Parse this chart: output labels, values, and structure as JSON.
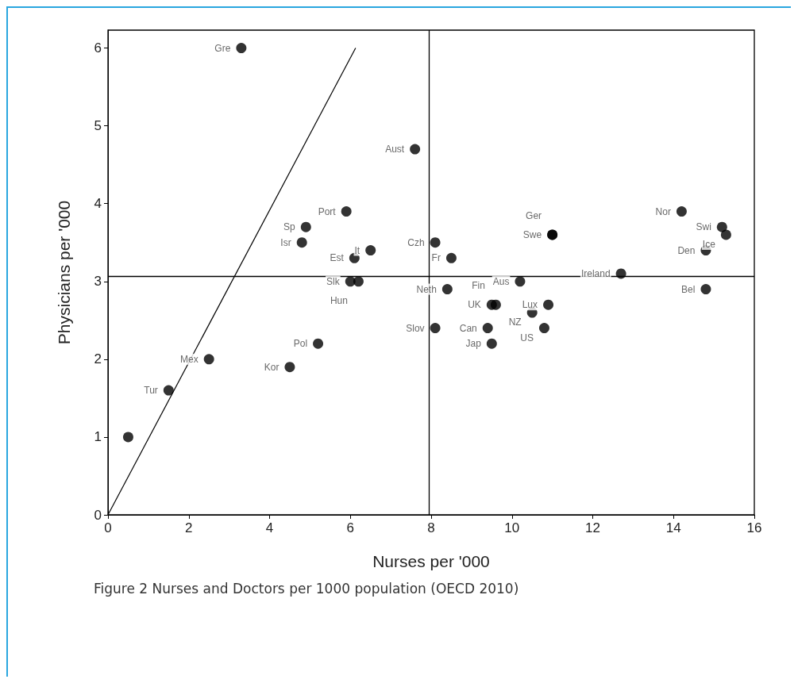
{
  "chart_data": {
    "type": "scatter",
    "xlabel": "Nurses per '000",
    "ylabel": "Physicians per '000",
    "annotations": [
      "Figure 2 Nurses and Doctors per 1000 population (OECD 2010)"
    ],
    "xlim": [
      0,
      16
    ],
    "xticks": [
      0,
      2,
      4,
      6,
      8,
      10,
      12,
      14,
      16
    ],
    "ylim": [
      0,
      6.23
    ],
    "yticks": [
      0,
      1,
      2,
      3,
      4,
      5,
      6
    ],
    "marker": "circle",
    "ref_lines": [
      {
        "axis": "x",
        "value": 7.95,
        "color": "#000000"
      },
      {
        "axis": "y",
        "value": 3.07,
        "color": "#000000"
      }
    ],
    "series": [
      {
        "color": "#000000",
        "x": [
          3.3,
          7.6,
          14.2,
          15.2,
          15.3,
          14.8,
          12.7,
          14.8,
          11.0,
          11.0,
          10.2,
          5.9,
          4.9,
          4.8,
          8.1,
          6.1,
          6.5,
          8.5,
          6.0,
          6.2,
          8.4,
          9.5,
          9.6,
          10.9,
          10.5,
          8.1,
          9.4,
          10.8,
          9.5,
          5.2,
          4.5,
          2.5,
          1.5,
          0.5
        ],
        "values": [
          6.0,
          4.7,
          3.9,
          3.7,
          3.6,
          3.4,
          3.1,
          2.9,
          3.6,
          3.6,
          3.0,
          3.9,
          3.7,
          3.5,
          3.5,
          3.3,
          3.4,
          3.3,
          3.0,
          3.0,
          2.9,
          2.7,
          2.7,
          2.7,
          2.6,
          2.4,
          2.4,
          2.4,
          2.2,
          2.2,
          1.9,
          2.0,
          1.6,
          1.0
        ],
        "value_labels": [
          "Gre",
          "Aust",
          "Nor",
          "Swi",
          "Ice",
          "Den",
          "Ireland",
          "Bel",
          "Swe",
          "Ger",
          "Aus",
          "Port",
          "Sp",
          "Isr",
          "Czh",
          "Est",
          "It",
          "Fr",
          "Slk",
          "Hun",
          "Neth",
          "UK",
          "Fin",
          "Lux",
          "NZ",
          "Slov",
          "Can",
          "US",
          "Jap",
          "Pol",
          "Kor",
          "Mex",
          "Tur",
          null
        ]
      },
      {
        "type": "line",
        "color": "#000000",
        "marker": "none",
        "x": [
          0,
          6.13
        ],
        "values": [
          0,
          6
        ]
      }
    ]
  }
}
